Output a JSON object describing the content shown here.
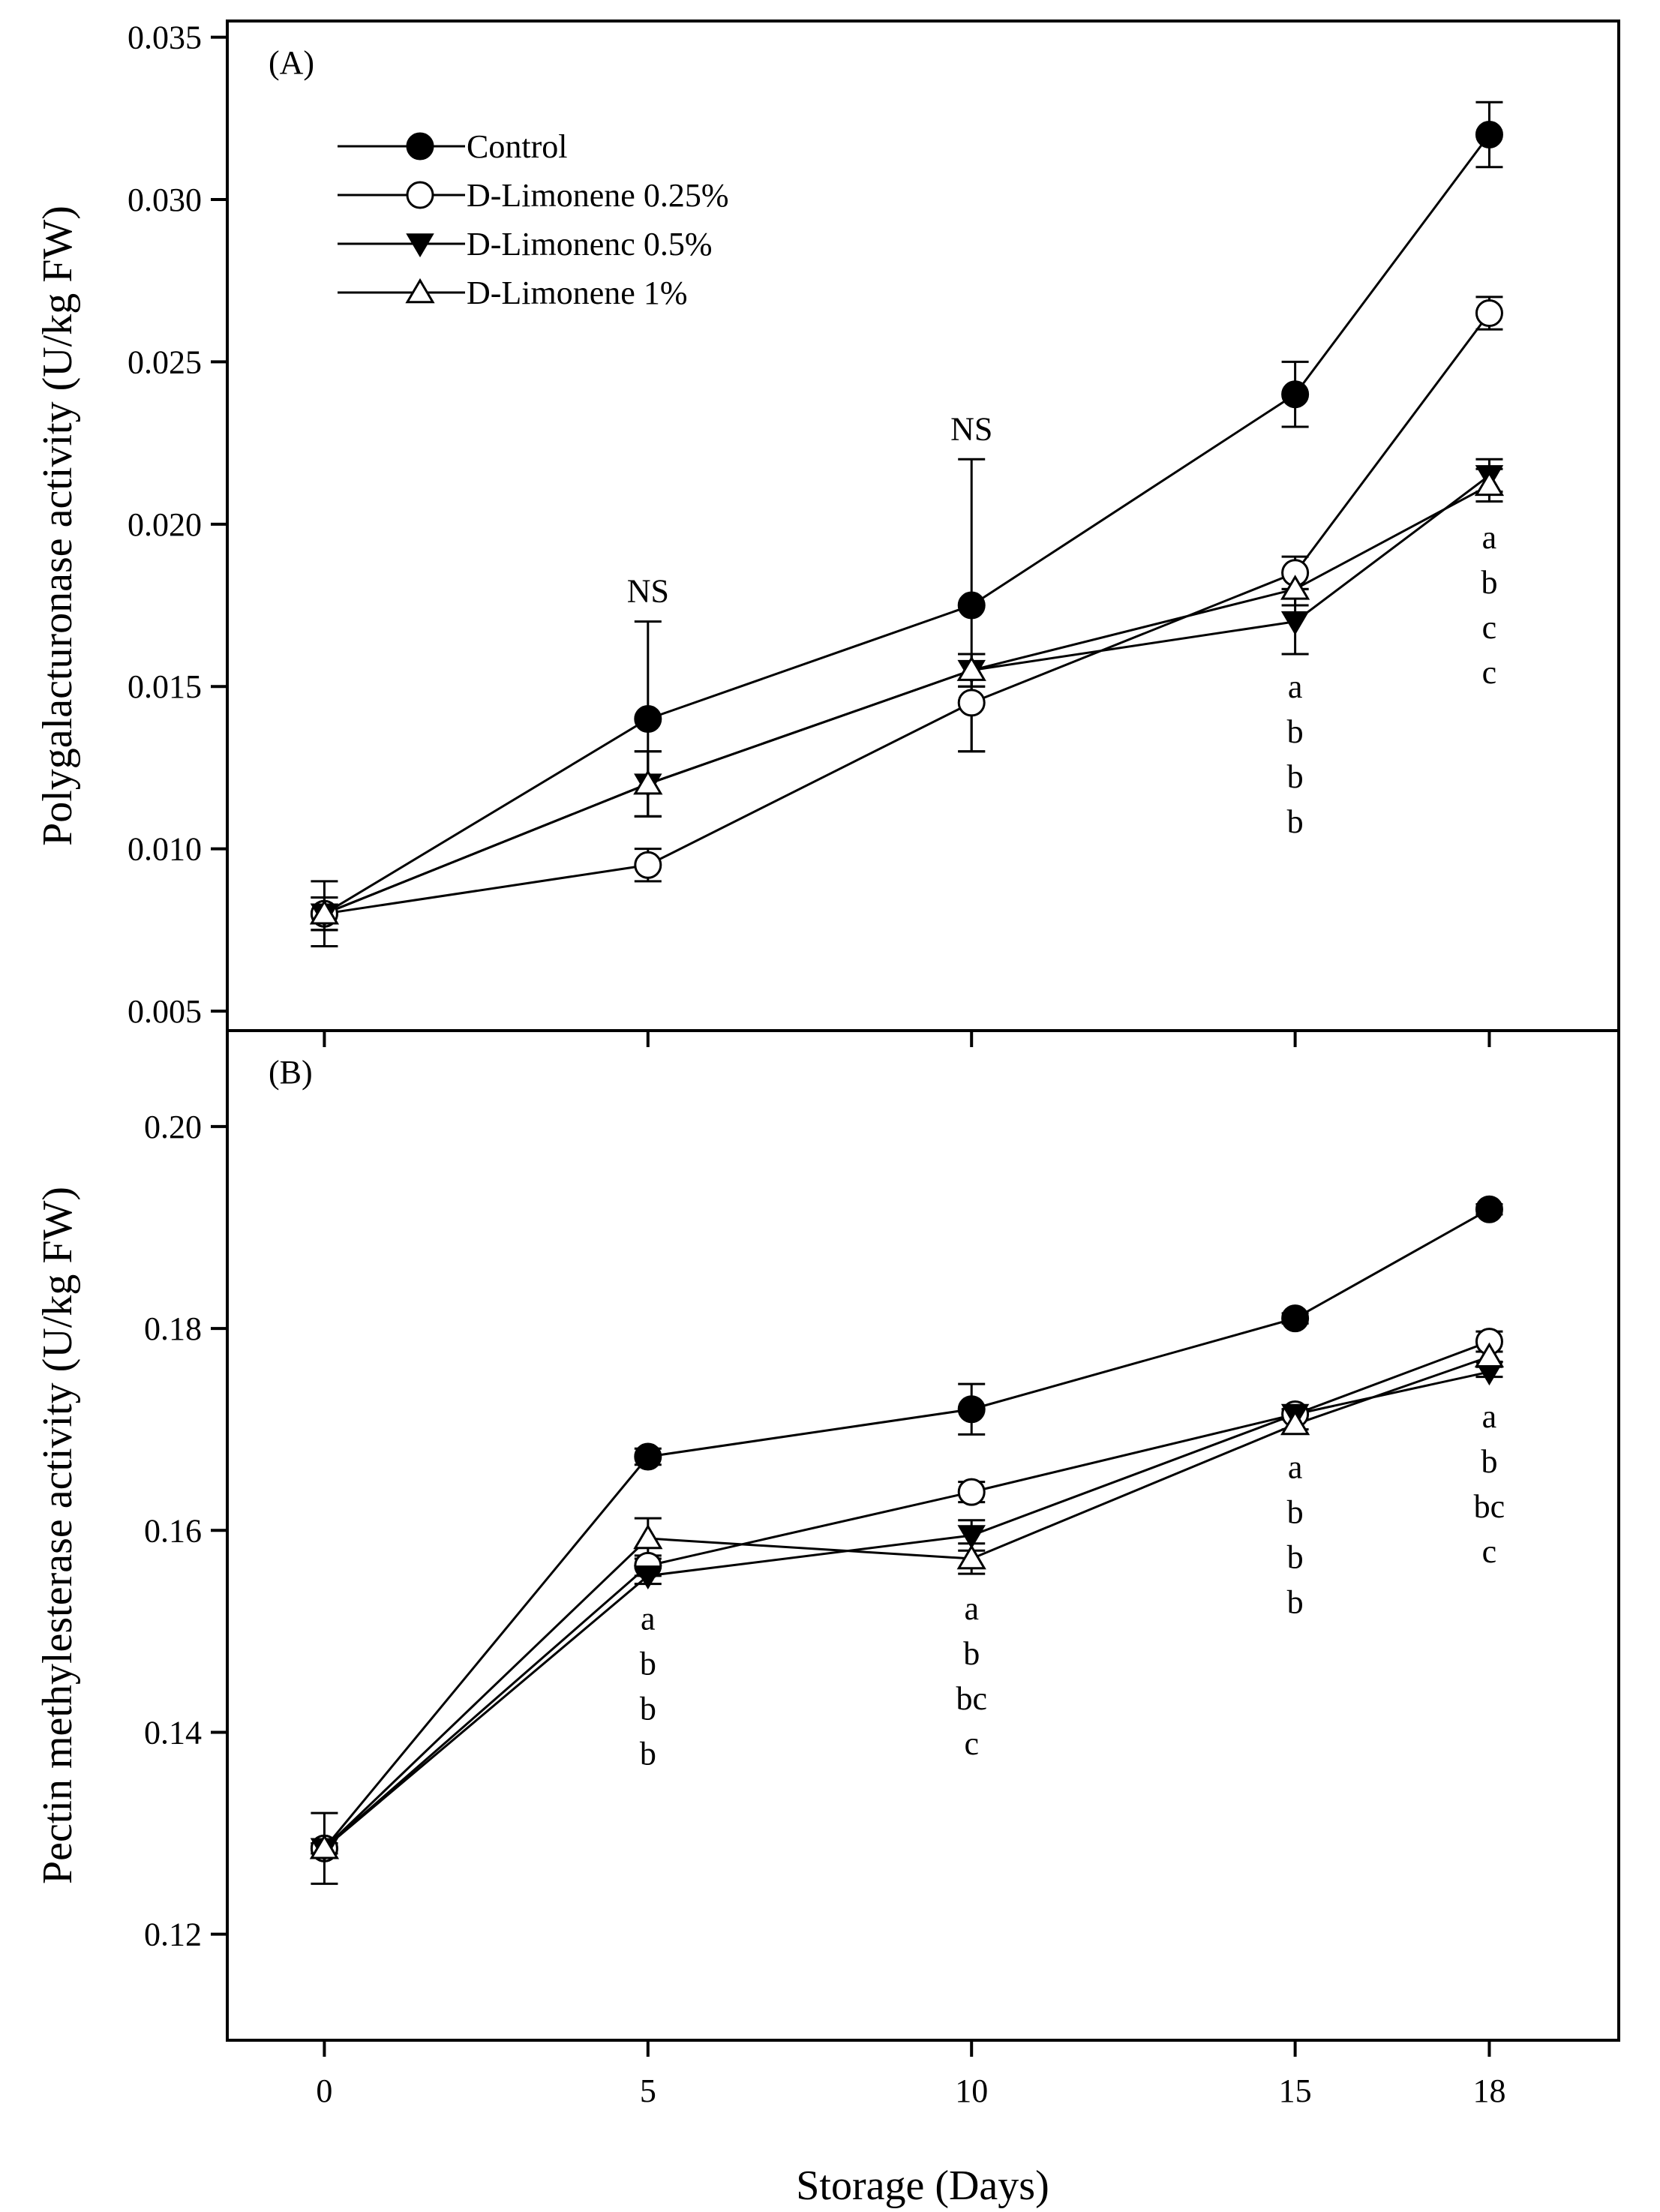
{
  "figure": {
    "xlabel": "Storage (Days)"
  },
  "legend": [
    {
      "name": "Control",
      "marker": "filled-circle"
    },
    {
      "name": "D-Limonene 0.25%",
      "marker": "open-circle"
    },
    {
      "name": "D-Limonenc 0.5%",
      "marker": "filled-triangle-down"
    },
    {
      "name": "D-Limonene 1%",
      "marker": "open-triangle-up"
    }
  ],
  "chart_data": [
    {
      "type": "line",
      "panel_label": "(A)",
      "xlabel": "",
      "ylabel": "Polygalacturonase activity (U/kg FW)",
      "x": [
        0,
        5,
        10,
        15,
        18
      ],
      "xlim": [
        -1.5,
        20
      ],
      "ylim": [
        0.0044,
        0.0355
      ],
      "yticks": [
        "0.005",
        "0.010",
        "0.015",
        "0.020",
        "0.025",
        "0.030",
        "0.035"
      ],
      "ytick_values": [
        0.005,
        0.01,
        0.015,
        0.02,
        0.025,
        0.03,
        0.035
      ],
      "series": [
        {
          "name": "Control",
          "marker": "filled-circle",
          "values": [
            0.008,
            0.014,
            0.0175,
            0.024,
            0.032
          ],
          "errors": [
            0.001,
            0.003,
            0.0045,
            0.001,
            0.001
          ]
        },
        {
          "name": "D-Limonene 0.25%",
          "marker": "open-circle",
          "values": [
            0.008,
            0.0095,
            0.0145,
            0.0185,
            0.0265
          ],
          "errors": [
            0.0005,
            0.0005,
            0.0015,
            0.0005,
            0.0005
          ]
        },
        {
          "name": "D-Limonenc 0.5%",
          "marker": "filled-triangle-down",
          "values": [
            0.008,
            0.012,
            0.0155,
            0.017,
            0.0215
          ],
          "errors": [
            0.0005,
            0.001,
            0.0005,
            0.001,
            0.0005
          ]
        },
        {
          "name": "D-Limonene 1%",
          "marker": "open-triangle-up",
          "values": [
            0.008,
            0.012,
            0.0155,
            0.018,
            0.0212
          ],
          "errors": [
            0.0005,
            0.001,
            0.0005,
            0.0005,
            0.0005
          ]
        }
      ],
      "annotations": [
        {
          "x": 5,
          "texts": [
            "NS"
          ],
          "placement": "above",
          "anchor_y": 0.017
        },
        {
          "x": 10,
          "texts": [
            "NS"
          ],
          "placement": "above",
          "anchor_y": 0.022
        },
        {
          "x": 15,
          "texts": [
            "a",
            "b",
            "b",
            "b"
          ],
          "placement": "below",
          "anchor_y": 0.016
        },
        {
          "x": 18,
          "texts": [
            "a",
            "b",
            "c",
            "c"
          ],
          "placement": "below",
          "anchor_y": 0.0206
        }
      ]
    },
    {
      "type": "line",
      "panel_label": "(B)",
      "xlabel": "Storage (Days)",
      "ylabel": "Pectin methylesterase activity (U/kg FW)",
      "x": [
        0,
        5,
        10,
        15,
        18
      ],
      "xlim": [
        -1.5,
        20
      ],
      "ylim": [
        0.1095,
        0.2095
      ],
      "yticks": [
        "0.12",
        "0.14",
        "0.16",
        "0.18",
        "0.20"
      ],
      "ytick_values": [
        0.12,
        0.14,
        0.16,
        0.18,
        0.2
      ],
      "xticks": [
        "0",
        "5",
        "10",
        "15",
        "18"
      ],
      "series": [
        {
          "name": "Control",
          "marker": "filled-circle",
          "values": [
            0.1285,
            0.1673,
            0.172,
            0.181,
            0.1918
          ],
          "errors": [
            0.0035,
            0.0008,
            0.0025,
            0.0005,
            0.0005
          ]
        },
        {
          "name": "D-Limonene 0.25%",
          "marker": "open-circle",
          "values": [
            0.1285,
            0.1565,
            0.1638,
            0.1715,
            0.1787
          ],
          "errors": [
            0.0005,
            0.001,
            0.001,
            0.0005,
            0.001
          ]
        },
        {
          "name": "D-Limonenc 0.5%",
          "marker": "filled-triangle-down",
          "values": [
            0.1285,
            0.1555,
            0.1595,
            0.1715,
            0.1757
          ],
          "errors": [
            0.0005,
            0.0008,
            0.0015,
            0.0005,
            0.0005
          ]
        },
        {
          "name": "D-Limonene 1%",
          "marker": "open-triangle-up",
          "values": [
            0.1285,
            0.1592,
            0.1572,
            0.1705,
            0.1772
          ],
          "errors": [
            0.0005,
            0.002,
            0.0015,
            0.0005,
            0.0005
          ]
        }
      ],
      "annotations": [
        {
          "x": 5,
          "texts": [
            "a",
            "b",
            "b",
            "b"
          ],
          "placement": "below",
          "anchor_y": 0.1545
        },
        {
          "x": 10,
          "texts": [
            "a",
            "b",
            "bc",
            "c"
          ],
          "placement": "below",
          "anchor_y": 0.1555
        },
        {
          "x": 15,
          "texts": [
            "a",
            "b",
            "b",
            "b"
          ],
          "placement": "below",
          "anchor_y": 0.1695
        },
        {
          "x": 18,
          "texts": [
            "a",
            "b",
            "bc",
            "c"
          ],
          "placement": "below",
          "anchor_y": 0.1745
        }
      ]
    }
  ]
}
